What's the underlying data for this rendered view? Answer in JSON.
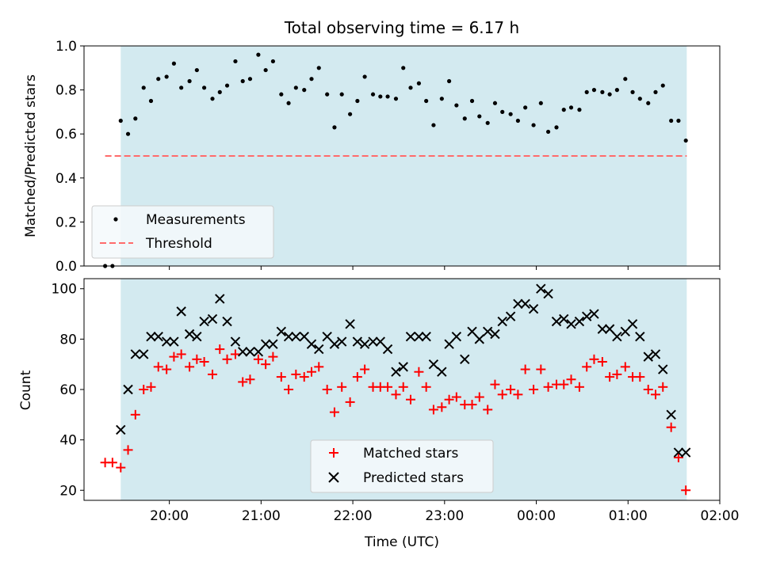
{
  "figure": {
    "title": "Total observing time = 6.17 h",
    "xlabel": "Time (UTC)",
    "x_ticks": [
      {
        "t": 1.0,
        "label": "20:00"
      },
      {
        "t": 2.0,
        "label": "21:00"
      },
      {
        "t": 3.0,
        "label": "22:00"
      },
      {
        "t": 4.0,
        "label": "23:00"
      },
      {
        "t": 5.0,
        "label": "00:00"
      },
      {
        "t": 6.0,
        "label": "01:00"
      },
      {
        "t": 7.0,
        "label": "02:00"
      }
    ],
    "x_axis_note": "x values are hours after 19:00 UTC",
    "xlim": [
      0.07,
      7.0
    ],
    "observing_window": [
      0.47,
      6.64
    ],
    "colors": {
      "shade": "#d3eaf0",
      "matched": "#ff0000",
      "predicted": "#000000",
      "threshold": "#ff6b6b",
      "measurements": "#000000"
    }
  },
  "chart_data": [
    {
      "type": "scatter",
      "ylabel": "Matched/Predicted stars",
      "ylim": [
        0,
        1.0
      ],
      "y_ticks": [
        {
          "v": 0.0,
          "label": "0.0"
        },
        {
          "v": 0.2,
          "label": "0.2"
        },
        {
          "v": 0.4,
          "label": "0.4"
        },
        {
          "v": 0.6,
          "label": "0.6"
        },
        {
          "v": 0.8,
          "label": "0.8"
        },
        {
          "v": 1.0,
          "label": "1.0"
        }
      ],
      "legend_position": "lower-left",
      "series": [
        {
          "name": "Measurements",
          "x": [
            0.3,
            0.38,
            0.47,
            0.55,
            0.63,
            0.72,
            0.8,
            0.88,
            0.97,
            1.05,
            1.13,
            1.22,
            1.3,
            1.38,
            1.47,
            1.55,
            1.63,
            1.72,
            1.8,
            1.88,
            1.97,
            2.05,
            2.13,
            2.22,
            2.3,
            2.38,
            2.47,
            2.55,
            2.63,
            2.72,
            2.8,
            2.88,
            2.97,
            3.05,
            3.13,
            3.22,
            3.3,
            3.38,
            3.47,
            3.55,
            3.63,
            3.72,
            3.8,
            3.88,
            3.97,
            4.05,
            4.13,
            4.22,
            4.3,
            4.38,
            4.47,
            4.55,
            4.63,
            4.72,
            4.8,
            4.88,
            4.97,
            5.05,
            5.13,
            5.22,
            5.3,
            5.38,
            5.47,
            5.55,
            5.63,
            5.72,
            5.8,
            5.88,
            5.97,
            6.05,
            6.13,
            6.22,
            6.3,
            6.38,
            6.47,
            6.55,
            6.63
          ],
          "y": [
            0.0,
            0.0,
            0.66,
            0.6,
            0.67,
            0.81,
            0.75,
            0.85,
            0.86,
            0.92,
            0.81,
            0.84,
            0.89,
            0.81,
            0.76,
            0.79,
            0.82,
            0.93,
            0.84,
            0.85,
            0.96,
            0.89,
            0.93,
            0.78,
            0.74,
            0.81,
            0.8,
            0.85,
            0.9,
            0.78,
            0.63,
            0.78,
            0.69,
            0.75,
            0.86,
            0.78,
            0.77,
            0.77,
            0.76,
            0.9,
            0.81,
            0.83,
            0.75,
            0.64,
            0.76,
            0.84,
            0.73,
            0.67,
            0.75,
            0.68,
            0.65,
            0.74,
            0.7,
            0.69,
            0.66,
            0.72,
            0.64,
            0.74,
            0.61,
            0.63,
            0.71,
            0.72,
            0.71,
            0.79,
            0.8,
            0.79,
            0.78,
            0.8,
            0.85,
            0.79,
            0.76,
            0.74,
            0.79,
            0.82,
            0.66,
            0.66,
            0.57
          ]
        },
        {
          "name": "Threshold",
          "type": "line",
          "x": [
            0.3,
            6.64
          ],
          "y": [
            0.5,
            0.5
          ]
        }
      ]
    },
    {
      "type": "scatter",
      "ylabel": "Count",
      "ylim": [
        16,
        104
      ],
      "y_ticks": [
        {
          "v": 20,
          "label": "20"
        },
        {
          "v": 40,
          "label": "40"
        },
        {
          "v": 60,
          "label": "60"
        },
        {
          "v": 80,
          "label": "80"
        },
        {
          "v": 100,
          "label": "100"
        }
      ],
      "legend_position": "lower-center",
      "series": [
        {
          "name": "Matched stars",
          "x": [
            0.3,
            0.38,
            0.47,
            0.55,
            0.63,
            0.72,
            0.8,
            0.88,
            0.97,
            1.05,
            1.13,
            1.22,
            1.3,
            1.38,
            1.47,
            1.55,
            1.63,
            1.72,
            1.8,
            1.88,
            1.97,
            2.05,
            2.13,
            2.22,
            2.3,
            2.38,
            2.47,
            2.55,
            2.63,
            2.72,
            2.8,
            2.88,
            2.97,
            3.05,
            3.13,
            3.22,
            3.3,
            3.38,
            3.47,
            3.55,
            3.63,
            3.72,
            3.8,
            3.88,
            3.97,
            4.05,
            4.13,
            4.22,
            4.3,
            4.38,
            4.47,
            4.55,
            4.63,
            4.72,
            4.8,
            4.88,
            4.97,
            5.05,
            5.13,
            5.22,
            5.3,
            5.38,
            5.47,
            5.55,
            5.63,
            5.72,
            5.8,
            5.88,
            5.97,
            6.05,
            6.13,
            6.22,
            6.3,
            6.38,
            6.47,
            6.55,
            6.63
          ],
          "y": [
            31,
            31,
            29,
            36,
            50,
            60,
            61,
            69,
            68,
            73,
            74,
            69,
            72,
            71,
            66,
            76,
            72,
            74,
            63,
            64,
            72,
            70,
            73,
            65,
            60,
            66,
            65,
            67,
            69,
            60,
            51,
            61,
            55,
            65,
            68,
            61,
            61,
            61,
            58,
            61,
            56,
            67,
            61,
            52,
            53,
            56,
            57,
            54,
            54,
            57,
            52,
            62,
            58,
            60,
            58,
            68,
            60,
            68,
            61,
            62,
            62,
            64,
            61,
            69,
            72,
            71,
            65,
            66,
            69,
            65,
            65,
            60,
            58,
            61,
            45,
            33,
            20
          ]
        },
        {
          "name": "Predicted stars",
          "x": [
            0.47,
            0.55,
            0.63,
            0.72,
            0.8,
            0.88,
            0.97,
            1.05,
            1.13,
            1.22,
            1.3,
            1.38,
            1.47,
            1.55,
            1.63,
            1.72,
            1.8,
            1.88,
            1.97,
            2.05,
            2.13,
            2.22,
            2.3,
            2.38,
            2.47,
            2.55,
            2.63,
            2.72,
            2.8,
            2.88,
            2.97,
            3.05,
            3.13,
            3.22,
            3.3,
            3.38,
            3.47,
            3.55,
            3.63,
            3.72,
            3.8,
            3.88,
            3.97,
            4.05,
            4.13,
            4.22,
            4.3,
            4.38,
            4.47,
            4.55,
            4.63,
            4.72,
            4.8,
            4.88,
            4.97,
            5.05,
            5.13,
            5.22,
            5.3,
            5.38,
            5.47,
            5.55,
            5.63,
            5.72,
            5.8,
            5.88,
            5.97,
            6.05,
            6.13,
            6.22,
            6.3,
            6.38,
            6.47,
            6.55,
            6.63
          ],
          "y": [
            44,
            60,
            74,
            74,
            81,
            81,
            79,
            79,
            91,
            82,
            81,
            87,
            88,
            96,
            87,
            79,
            75,
            75,
            75,
            78,
            78,
            83,
            81,
            81,
            81,
            78,
            76,
            81,
            78,
            79,
            86,
            79,
            78,
            79,
            79,
            76,
            67,
            69,
            81,
            81,
            81,
            70,
            67,
            78,
            81,
            72,
            83,
            80,
            83,
            82,
            87,
            89,
            94,
            94,
            92,
            100,
            98,
            87,
            88,
            86,
            87,
            89,
            90,
            84,
            84,
            81,
            83,
            86,
            81,
            73,
            74,
            68,
            50,
            35,
            35
          ]
        }
      ]
    }
  ]
}
